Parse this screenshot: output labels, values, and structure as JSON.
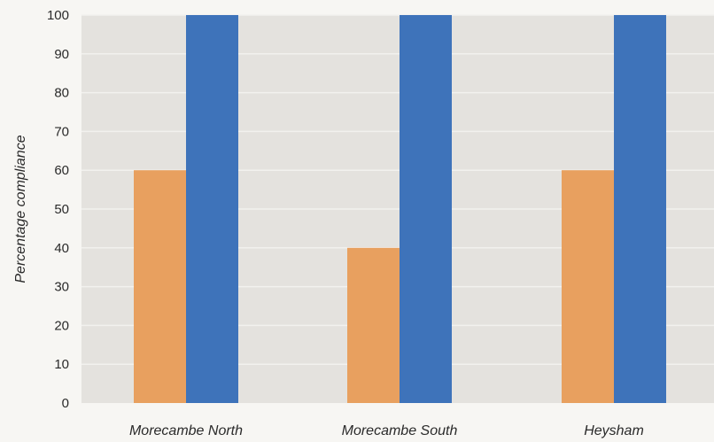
{
  "chart_data": {
    "type": "bar",
    "categories": [
      "Morecambe North",
      "Morecambe South",
      "Heysham"
    ],
    "series": [
      {
        "values": [
          60,
          40,
          60
        ],
        "color": "#e8a05f"
      },
      {
        "values": [
          100,
          100,
          100
        ],
        "color": "#3e73ba"
      }
    ],
    "ylabel": "Percentage compliance",
    "ylim": [
      0,
      100
    ],
    "yticks": [
      0,
      10,
      20,
      30,
      40,
      50,
      60,
      70,
      80,
      90,
      100
    ],
    "grid": true,
    "plot_background": "#e4e2de",
    "gridline_color": "#f2f1ee"
  }
}
